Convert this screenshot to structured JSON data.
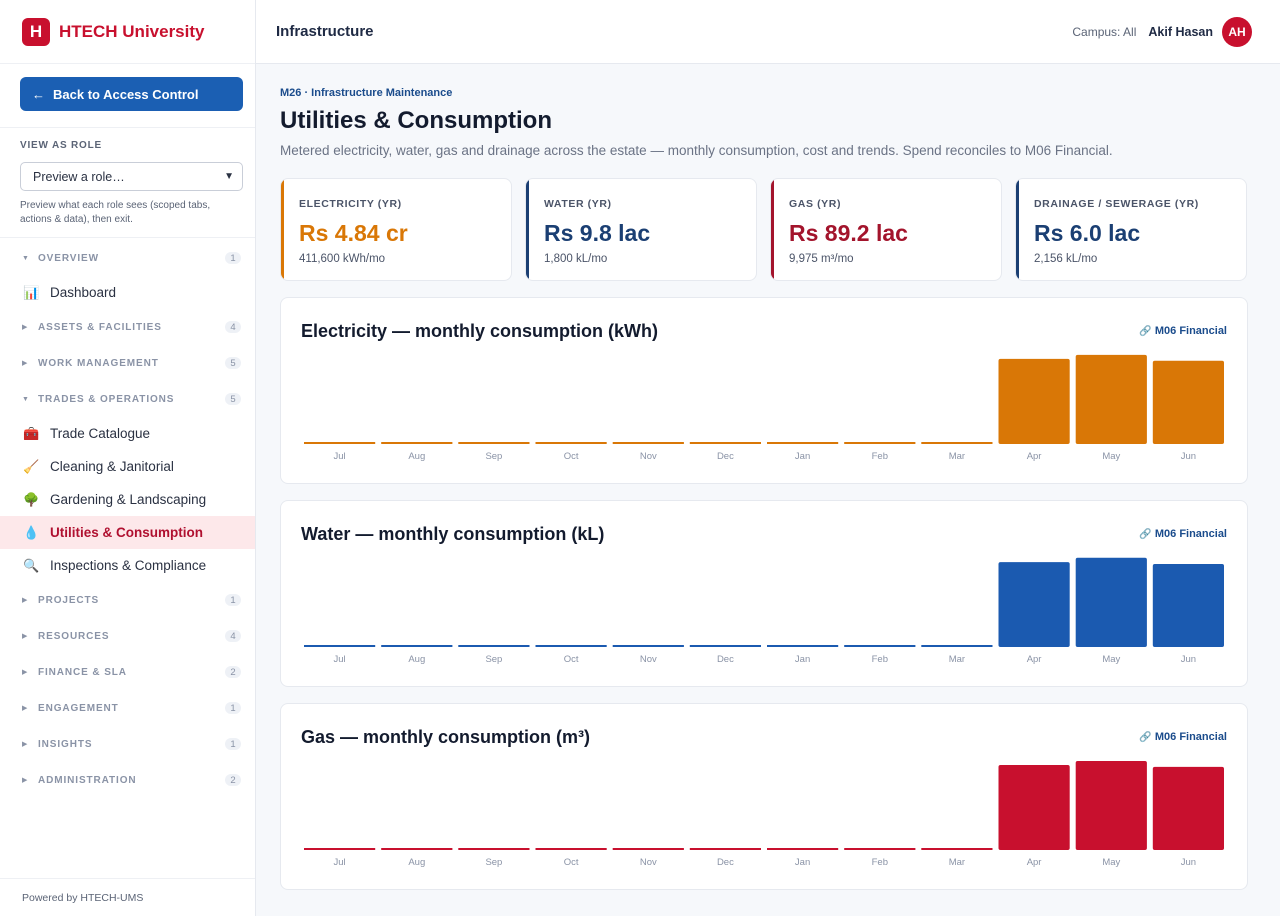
{
  "brand": {
    "logo_letter": "H",
    "name": "HTECH University"
  },
  "back_button": {
    "arrow": "←",
    "label": "Back to Access Control"
  },
  "role": {
    "title": "VIEW AS ROLE",
    "select_value": "Preview a role…",
    "help": "Preview what each role sees (scoped tabs, actions & data), then exit."
  },
  "nav": [
    {
      "type": "section",
      "label": "OVERVIEW",
      "count": "1",
      "expanded": true
    },
    {
      "type": "item",
      "icon": "📊",
      "icon_name": "bar-chart-icon",
      "label": "Dashboard"
    },
    {
      "type": "section",
      "label": "ASSETS & FACILITIES",
      "count": "4",
      "expanded": false
    },
    {
      "type": "section",
      "label": "WORK MANAGEMENT",
      "count": "5",
      "expanded": false
    },
    {
      "type": "section",
      "label": "TRADES & OPERATIONS",
      "count": "5",
      "expanded": true
    },
    {
      "type": "item",
      "icon": "🧰",
      "icon_name": "toolbox-icon",
      "label": "Trade Catalogue"
    },
    {
      "type": "item",
      "icon": "🧹",
      "icon_name": "broom-icon",
      "label": "Cleaning & Janitorial"
    },
    {
      "type": "item",
      "icon": "🌳",
      "icon_name": "tree-icon",
      "label": "Gardening & Landscaping"
    },
    {
      "type": "item",
      "icon": "💧",
      "icon_name": "droplet-icon",
      "label": "Utilities & Consumption",
      "active": true
    },
    {
      "type": "item",
      "icon": "🔍",
      "icon_name": "magnifier-icon",
      "label": "Inspections & Compliance"
    },
    {
      "type": "section",
      "label": "PROJECTS",
      "count": "1",
      "expanded": false
    },
    {
      "type": "section",
      "label": "RESOURCES",
      "count": "4",
      "expanded": false
    },
    {
      "type": "section",
      "label": "FINANCE & SLA",
      "count": "2",
      "expanded": false
    },
    {
      "type": "section",
      "label": "ENGAGEMENT",
      "count": "1",
      "expanded": false
    },
    {
      "type": "section",
      "label": "INSIGHTS",
      "count": "1",
      "expanded": false
    },
    {
      "type": "section",
      "label": "ADMINISTRATION",
      "count": "2",
      "expanded": false
    }
  ],
  "footer": "Powered by HTECH-UMS",
  "header": {
    "title": "Infrastructure",
    "campus": "Campus: All",
    "user_name": "Akif Hasan",
    "avatar_initials": "AH"
  },
  "page": {
    "breadcrumb": "M26 · Infrastructure Maintenance",
    "title": "Utilities & Consumption",
    "description": "Metered electricity, water, gas and drainage across the estate — monthly consumption, cost and trends. Spend reconciles to M06 Financial."
  },
  "kpis": [
    {
      "label": "ELECTRICITY (YR)",
      "value": "Rs 4.84 cr",
      "sub": "411,600 kWh/mo",
      "color": "#d97706"
    },
    {
      "label": "WATER (YR)",
      "value": "Rs 9.8 lac",
      "sub": "1,800 kL/mo",
      "color": "#1b3f73"
    },
    {
      "label": "GAS (YR)",
      "value": "Rs 89.2 lac",
      "sub": "9,975 m³/mo",
      "color": "#a3142c"
    },
    {
      "label": "DRAINAGE / SEWERAGE (YR)",
      "value": "Rs 6.0 lac",
      "sub": "2,156 kL/mo",
      "color": "#1b3f73"
    }
  ],
  "chart_link_label": "M06 Financial",
  "chart_link_icon": "link-icon",
  "chart_data": [
    {
      "type": "bar",
      "title": "Electricity — monthly consumption (kWh)",
      "categories": [
        "Jul",
        "Aug",
        "Sep",
        "Oct",
        "Nov",
        "Dec",
        "Jan",
        "Feb",
        "Mar",
        "Apr",
        "May",
        "Jun"
      ],
      "values": [
        0,
        0,
        0,
        0,
        0,
        0,
        0,
        0,
        0,
        411600,
        431000,
        403000
      ],
      "ylim": [
        0,
        445000
      ],
      "color": "#d97706",
      "grid": false
    },
    {
      "type": "bar",
      "title": "Water — monthly consumption (kL)",
      "categories": [
        "Jul",
        "Aug",
        "Sep",
        "Oct",
        "Nov",
        "Dec",
        "Jan",
        "Feb",
        "Mar",
        "Apr",
        "May",
        "Jun"
      ],
      "values": [
        0,
        0,
        0,
        0,
        0,
        0,
        0,
        0,
        0,
        1800,
        1890,
        1760
      ],
      "ylim": [
        0,
        1950
      ],
      "color": "#1b5ab0",
      "grid": false
    },
    {
      "type": "bar",
      "title": "Gas — monthly consumption (m³)",
      "categories": [
        "Jul",
        "Aug",
        "Sep",
        "Oct",
        "Nov",
        "Dec",
        "Jan",
        "Feb",
        "Mar",
        "Apr",
        "May",
        "Jun"
      ],
      "values": [
        0,
        0,
        0,
        0,
        0,
        0,
        0,
        0,
        0,
        9975,
        10450,
        9750
      ],
      "ylim": [
        0,
        10800
      ],
      "color": "#c8102e",
      "grid": false
    }
  ]
}
